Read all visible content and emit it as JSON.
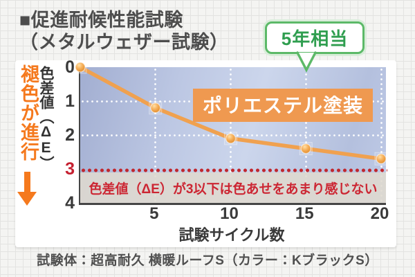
{
  "page": {
    "title_line1": "■促進耐候性能試験",
    "title_line2": "（メタルウェザー試験）",
    "caption": "試験体：超高耐久 横暖ルーフS（カラー：KブラックS）"
  },
  "callout": {
    "label": "5年相当",
    "points_to_cycle": 15
  },
  "fade_indicator": {
    "label": "褪色が進行"
  },
  "chart_data": {
    "type": "line",
    "title": "促進耐候性能試験（メタルウェザー試験）",
    "xlabel": "試験サイクル数",
    "ylabel": "色差値（ΔE）",
    "x": [
      0,
      5,
      10,
      15,
      20
    ],
    "series": [
      {
        "name": "ポリエステル塗装",
        "values": [
          0,
          1.2,
          2.1,
          2.4,
          2.7
        ],
        "color": "#f0a14f"
      }
    ],
    "xlim": [
      0,
      20
    ],
    "ylim": [
      0,
      4
    ],
    "y_axis_direction": "increases_downward",
    "x_ticks": [
      5,
      10,
      15,
      20
    ],
    "y_ticks": [
      0,
      1,
      2,
      3,
      4
    ],
    "grid_y": [
      1,
      2
    ],
    "grid": true,
    "legend_position": "inside-top-right-label-box",
    "threshold": {
      "value": 3,
      "color": "#c1272d",
      "note": "色差値（ΔE）が3以下は色あせをあまり感じない"
    }
  },
  "colors": {
    "accent_orange": "#f5791d",
    "line_orange": "#f0a14f",
    "label_box_orange": "#ef9950",
    "green_border": "#5cb968",
    "green_text": "#2f9e4f",
    "red": "#c1272d",
    "tick_red": "#c52030",
    "band_bg": "#dfd9cf",
    "plot_blue": "#b7c3e1",
    "text_gray": "#4d4d4d"
  }
}
